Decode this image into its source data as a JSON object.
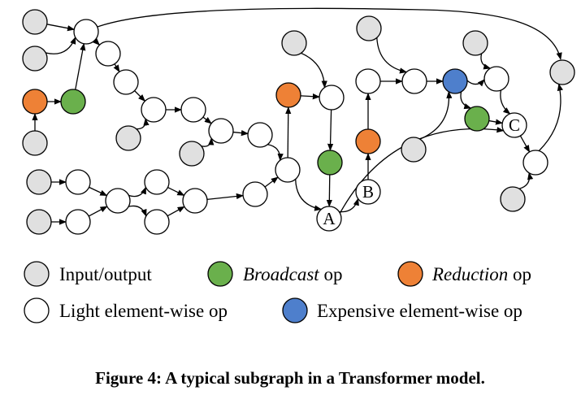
{
  "colors": {
    "input_output": "#e0e0e0",
    "broadcast": "#6ab04c",
    "reduction": "#ee8136",
    "light": "#ffffff",
    "expensive": "#4e7fcc"
  },
  "node_labels": {
    "A": "A",
    "B": "B",
    "C": "C"
  },
  "legend": {
    "input_output": "Input/output",
    "broadcast_name": "Broadcast",
    "broadcast_suffix": " op",
    "reduction_name": "Reduction",
    "reduction_suffix": " op",
    "light": "Light element-wise op",
    "expensive": "Expensive element-wise op"
  },
  "caption": "Figure 4: A typical subgraph in a Transformer model."
}
